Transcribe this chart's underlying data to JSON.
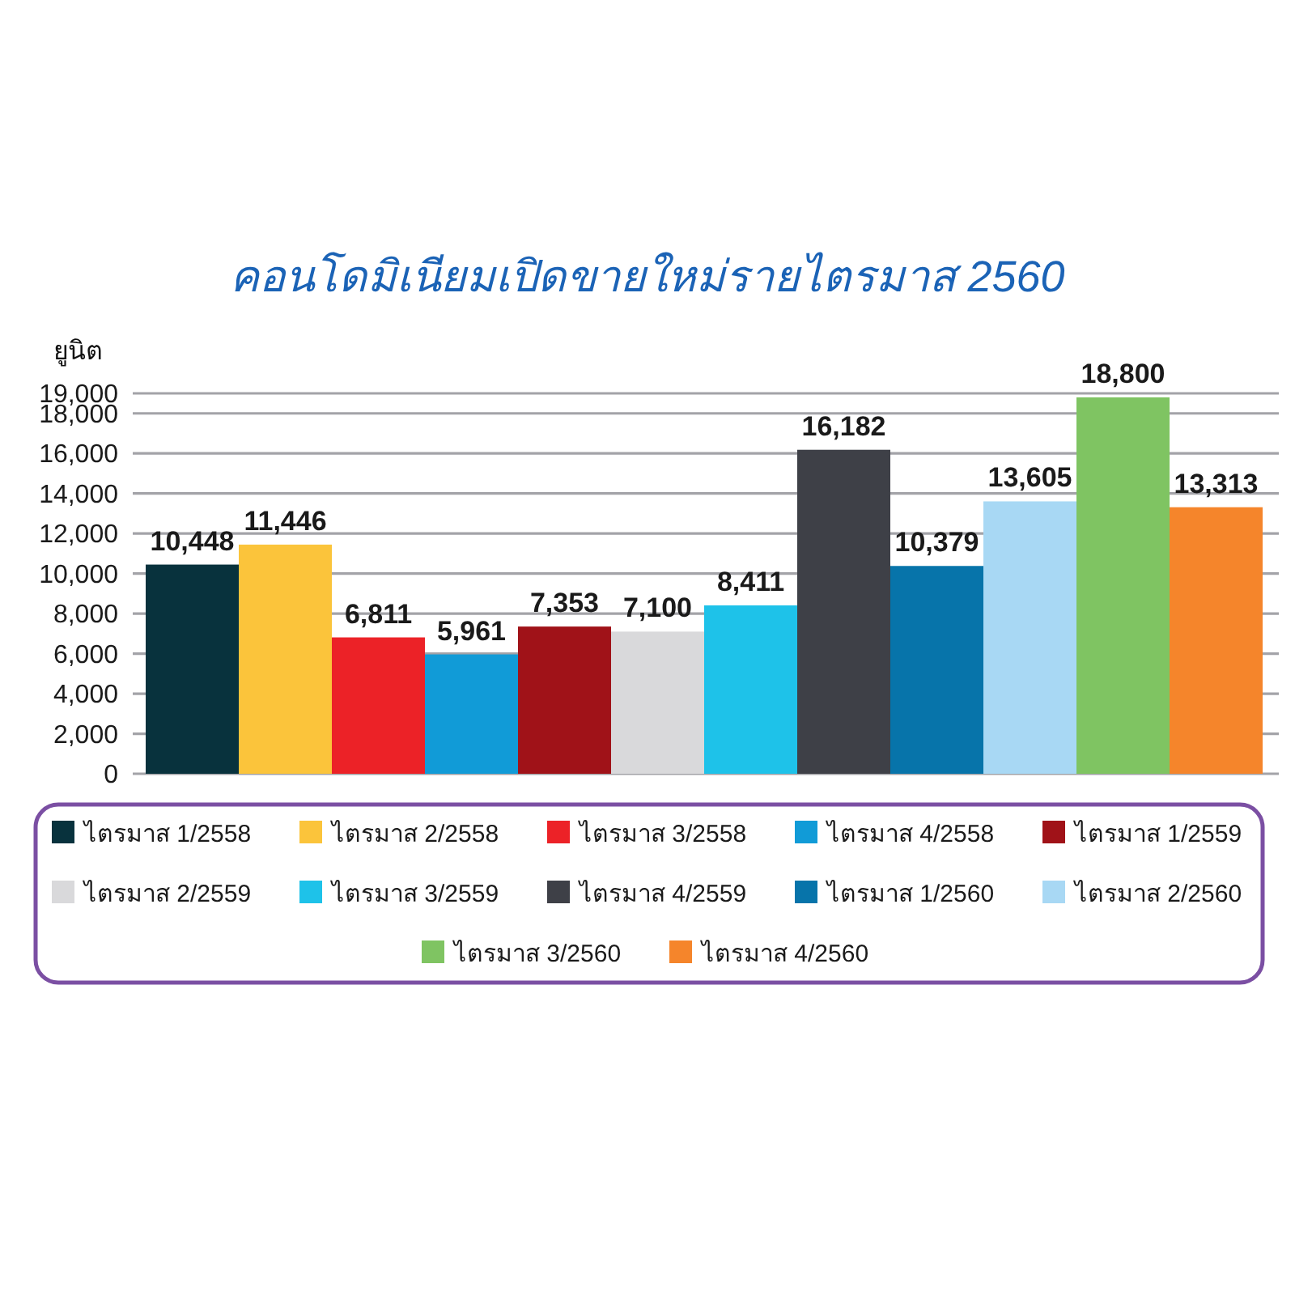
{
  "chart_data": {
    "type": "bar",
    "title": "คอนโดมิเนียมเปิดขายใหม่รายไตรมาส 2560",
    "ylabel": "ยูนิต",
    "categories": [
      null
    ],
    "series": [
      {
        "name": "ไตรมาส 1/2558",
        "color": "#08323d",
        "values": [
          10448
        ],
        "value_labels": [
          "10,448"
        ]
      },
      {
        "name": "ไตรมาส 2/2558",
        "color": "#fbc43b",
        "values": [
          11446
        ],
        "value_labels": [
          "11,446"
        ]
      },
      {
        "name": "ไตรมาส 3/2558",
        "color": "#ec2227",
        "values": [
          6811
        ],
        "value_labels": [
          "6,811"
        ]
      },
      {
        "name": "ไตรมาส 4/2558",
        "color": "#119bd7",
        "values": [
          5961
        ],
        "value_labels": [
          "5,961"
        ]
      },
      {
        "name": "ไตรมาส 1/2559",
        "color": "#a01218",
        "values": [
          7353
        ],
        "value_labels": [
          "7,353"
        ]
      },
      {
        "name": "ไตรมาส 2/2559",
        "color": "#d9d9db",
        "values": [
          7100
        ],
        "value_labels": [
          "7,100"
        ]
      },
      {
        "name": "ไตรมาส 3/2559",
        "color": "#1ec2e9",
        "values": [
          8411
        ],
        "value_labels": [
          "8,411"
        ]
      },
      {
        "name": "ไตรมาส 4/2559",
        "color": "#3e4047",
        "values": [
          16182
        ],
        "value_labels": [
          "16,182"
        ]
      },
      {
        "name": "ไตรมาส 1/2560",
        "color": "#0774aa",
        "values": [
          10379
        ],
        "value_labels": [
          "10,379"
        ]
      },
      {
        "name": "ไตรมาส 2/2560",
        "color": "#a8d8f4",
        "values": [
          13605
        ],
        "value_labels": [
          "13,605"
        ]
      },
      {
        "name": "ไตรมาส 3/2560",
        "color": "#7fc462",
        "values": [
          18800
        ],
        "value_labels": [
          "18,800"
        ]
      },
      {
        "name": "ไตรมาส 4/2560",
        "color": "#f5852b",
        "values": [
          13313
        ],
        "value_labels": [
          "13,313"
        ]
      }
    ],
    "ylim": [
      0,
      19000
    ],
    "yticks": [
      0,
      {
        "value": 2000,
        "label": "2,000"
      },
      {
        "value": 4000,
        "label": "4,000"
      },
      {
        "value": 6000,
        "label": "6,000"
      },
      {
        "value": 8000,
        "label": "8,000"
      },
      {
        "value": 10000,
        "label": "10,000"
      },
      {
        "value": 12000,
        "label": "12,000"
      },
      {
        "value": 14000,
        "label": "14,000"
      },
      {
        "value": 16000,
        "label": "16,000"
      },
      {
        "value": 18000,
        "label": "18,000"
      },
      {
        "value": 19000,
        "label": "19,000"
      }
    ],
    "grid": "y",
    "legend": "bottom"
  }
}
